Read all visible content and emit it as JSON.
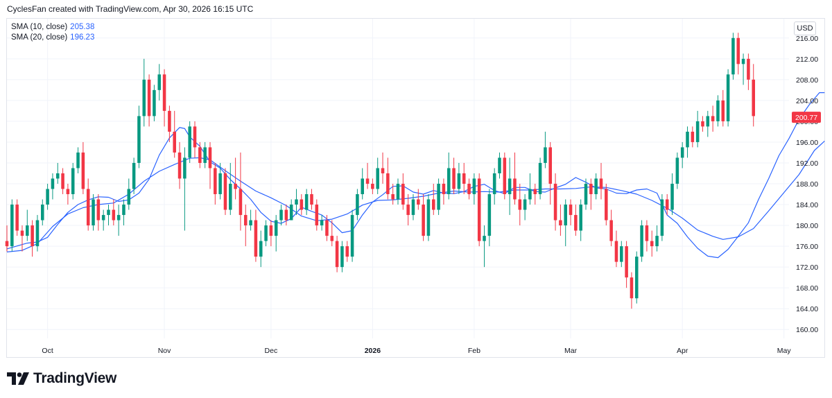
{
  "caption": "CyclesFan created with TradingView.com, Apr 30, 2026 16:15 UTC",
  "legend": [
    {
      "label": "SMA (10, close)",
      "value": "205.38",
      "color": "#2962ff"
    },
    {
      "label": "SMA (20, close)",
      "value": "196.23",
      "color": "#2962ff"
    }
  ],
  "currency_button": "USD",
  "brand": "TradingView",
  "colors": {
    "up": "#089981",
    "down": "#f23645",
    "sma": "#2962ff",
    "grid": "#f0f3fa",
    "axis_text": "#131722"
  },
  "chart_data": {
    "type": "candlestick",
    "last_price": "200.77",
    "y_ticks": [
      160,
      164,
      168,
      172,
      176,
      180,
      184,
      188,
      192,
      196,
      200,
      204,
      208,
      212,
      216
    ],
    "y_tick_labels": [
      "160.00",
      "164.00",
      "168.00",
      "172.00",
      "176.00",
      "180.00",
      "184.00",
      "188.00",
      "192.00",
      "196.00",
      "200.00",
      "204.00",
      "208.00",
      "212.00",
      "216.00"
    ],
    "ylim": [
      158.3,
      219.7
    ],
    "x_range": [
      0,
      154
    ],
    "x_ticks": [
      {
        "label": "Oct",
        "index": 8
      },
      {
        "label": "Nov",
        "index": 31
      },
      {
        "label": "Dec",
        "index": 52
      },
      {
        "label": "2026",
        "index": 72
      },
      {
        "label": "Feb",
        "index": 92
      },
      {
        "label": "Mar",
        "index": 111
      },
      {
        "label": "Apr",
        "index": 133
      },
      {
        "label": "May",
        "index": 153
      }
    ],
    "candles": [
      [
        177,
        180,
        175,
        176
      ],
      [
        176,
        185,
        175,
        184
      ],
      [
        184,
        185,
        178,
        179
      ],
      [
        179,
        180,
        175,
        178
      ],
      [
        178,
        183,
        177,
        180
      ],
      [
        180,
        181,
        174,
        176
      ],
      [
        176,
        182,
        175,
        181
      ],
      [
        181,
        185,
        180,
        184
      ],
      [
        184,
        188,
        183,
        187
      ],
      [
        187,
        190,
        185,
        189
      ],
      [
        189,
        192,
        188,
        190
      ],
      [
        190,
        191,
        186,
        187
      ],
      [
        187,
        188,
        184,
        186
      ],
      [
        186,
        192,
        185,
        191
      ],
      [
        191,
        195,
        190,
        194
      ],
      [
        194,
        196,
        186,
        187
      ],
      [
        187,
        189,
        179,
        180
      ],
      [
        180,
        186,
        179,
        185
      ],
      [
        185,
        186,
        179,
        181
      ],
      [
        181,
        183,
        179,
        182
      ],
      [
        182,
        184,
        180,
        183
      ],
      [
        183,
        185,
        180,
        181
      ],
      [
        181,
        184,
        178,
        182
      ],
      [
        182,
        185,
        180,
        184
      ],
      [
        184,
        189,
        183,
        187
      ],
      [
        187,
        193,
        186,
        192
      ],
      [
        192,
        203,
        191,
        201
      ],
      [
        201,
        212,
        199,
        208
      ],
      [
        208,
        209,
        199,
        201
      ],
      [
        201,
        207,
        200,
        206
      ],
      [
        206,
        211,
        204,
        209
      ],
      [
        209,
        210,
        199,
        202
      ],
      [
        202,
        203,
        196,
        198
      ],
      [
        198,
        202,
        193,
        194
      ],
      [
        194,
        196,
        187,
        189
      ],
      [
        189,
        195,
        179,
        193
      ],
      [
        193,
        200,
        192,
        199
      ],
      [
        199,
        200,
        193,
        195
      ],
      [
        195,
        196,
        191,
        192
      ],
      [
        192,
        196,
        191,
        195
      ],
      [
        195,
        196,
        187,
        191
      ],
      [
        191,
        192,
        184,
        186
      ],
      [
        186,
        192,
        185,
        190
      ],
      [
        190,
        191,
        182,
        183
      ],
      [
        183,
        192,
        182,
        188
      ],
      [
        188,
        193,
        185,
        187
      ],
      [
        187,
        194,
        179,
        182
      ],
      [
        182,
        184,
        176,
        180
      ],
      [
        180,
        183,
        179,
        181
      ],
      [
        181,
        183,
        173,
        174
      ],
      [
        174,
        179,
        172,
        177
      ],
      [
        177,
        181,
        176,
        180
      ],
      [
        180,
        181,
        176,
        178
      ],
      [
        178,
        182,
        175,
        181
      ],
      [
        181,
        184,
        180,
        183
      ],
      [
        183,
        184,
        180,
        181
      ],
      [
        181,
        185,
        181,
        184
      ],
      [
        184,
        187,
        182,
        185
      ],
      [
        185,
        186,
        182,
        183
      ],
      [
        183,
        187,
        182,
        186
      ],
      [
        186,
        187,
        183,
        184
      ],
      [
        184,
        185,
        179,
        180
      ],
      [
        180,
        182,
        179,
        181
      ],
      [
        181,
        182,
        177,
        178
      ],
      [
        178,
        181,
        176,
        177
      ],
      [
        177,
        178,
        171,
        172
      ],
      [
        172,
        177,
        171,
        176
      ],
      [
        176,
        177,
        173,
        174
      ],
      [
        174,
        183,
        173,
        182
      ],
      [
        182,
        187,
        181,
        186
      ],
      [
        186,
        191,
        185,
        189
      ],
      [
        189,
        192,
        187,
        188
      ],
      [
        188,
        189,
        186,
        187
      ],
      [
        187,
        193,
        186,
        191
      ],
      [
        191,
        194,
        188,
        190
      ],
      [
        190,
        193,
        185,
        186
      ],
      [
        186,
        188,
        184,
        185
      ],
      [
        185,
        189,
        184,
        188
      ],
      [
        188,
        190,
        183,
        184
      ],
      [
        184,
        186,
        180,
        182
      ],
      [
        182,
        186,
        181,
        185
      ],
      [
        185,
        187,
        183,
        184
      ],
      [
        184,
        186,
        177,
        178
      ],
      [
        178,
        186,
        177,
        185
      ],
      [
        185,
        188,
        182,
        183
      ],
      [
        183,
        189,
        182,
        188
      ],
      [
        188,
        189,
        184,
        186
      ],
      [
        186,
        194,
        185,
        191
      ],
      [
        191,
        193,
        186,
        187
      ],
      [
        187,
        192,
        186,
        190
      ],
      [
        190,
        192,
        186,
        188
      ],
      [
        188,
        189,
        185,
        186
      ],
      [
        186,
        190,
        184,
        189
      ],
      [
        189,
        190,
        176,
        177
      ],
      [
        177,
        180,
        172,
        178
      ],
      [
        178,
        187,
        176,
        186
      ],
      [
        186,
        191,
        184,
        190
      ],
      [
        190,
        194,
        189,
        193
      ],
      [
        193,
        194,
        185,
        186
      ],
      [
        186,
        193,
        182,
        189
      ],
      [
        189,
        194,
        184,
        185
      ],
      [
        185,
        188,
        180,
        183
      ],
      [
        183,
        186,
        181,
        185
      ],
      [
        185,
        190,
        184,
        187
      ],
      [
        187,
        188,
        184,
        186
      ],
      [
        186,
        193,
        185,
        192
      ],
      [
        192,
        198,
        191,
        195
      ],
      [
        195,
        196,
        184,
        188
      ],
      [
        188,
        190,
        179,
        181
      ],
      [
        181,
        184,
        178,
        180
      ],
      [
        180,
        185,
        176,
        184
      ],
      [
        184,
        185,
        180,
        182
      ],
      [
        182,
        184,
        178,
        179
      ],
      [
        179,
        185,
        177,
        184
      ],
      [
        184,
        189,
        183,
        188
      ],
      [
        188,
        189,
        183,
        186
      ],
      [
        186,
        190,
        185,
        189
      ],
      [
        189,
        192,
        185,
        187
      ],
      [
        187,
        188,
        180,
        181
      ],
      [
        181,
        183,
        176,
        177
      ],
      [
        177,
        179,
        172,
        173
      ],
      [
        173,
        177,
        172,
        176
      ],
      [
        176,
        177,
        168,
        170
      ],
      [
        170,
        171,
        164,
        166
      ],
      [
        166,
        175,
        165,
        174
      ],
      [
        174,
        181,
        173,
        180
      ],
      [
        180,
        181,
        175,
        177
      ],
      [
        177,
        179,
        174,
        176
      ],
      [
        176,
        180,
        175,
        178
      ],
      [
        178,
        186,
        177,
        185
      ],
      [
        185,
        186,
        182,
        183
      ],
      [
        183,
        190,
        182,
        188
      ],
      [
        188,
        194,
        187,
        193
      ],
      [
        193,
        196,
        191,
        195
      ],
      [
        195,
        199,
        193,
        198
      ],
      [
        198,
        199,
        195,
        196
      ],
      [
        196,
        202,
        195,
        200
      ],
      [
        200,
        201,
        198,
        199
      ],
      [
        199,
        202,
        197,
        201
      ],
      [
        201,
        203,
        198,
        200
      ],
      [
        200,
        205,
        199,
        204
      ],
      [
        204,
        206,
        199,
        200
      ],
      [
        200,
        210,
        199,
        209
      ],
      [
        209,
        217,
        208,
        216
      ],
      [
        216,
        217,
        209,
        211
      ],
      [
        211,
        213,
        207,
        212
      ],
      [
        212,
        213,
        206,
        208
      ],
      [
        208,
        211,
        199,
        201
      ]
    ],
    "sma10": [
      [
        0,
        175.5
      ],
      [
        4,
        176.6
      ],
      [
        6,
        176.8
      ],
      [
        8,
        177.7
      ],
      [
        10,
        180.2
      ],
      [
        12,
        182.5
      ],
      [
        14,
        184
      ],
      [
        16,
        184.9
      ],
      [
        18,
        185.5
      ],
      [
        20,
        185.4
      ],
      [
        22,
        184.6
      ],
      [
        24,
        184.9
      ],
      [
        26,
        186.2
      ],
      [
        28,
        188.9
      ],
      [
        30,
        193.5
      ],
      [
        32,
        196.8
      ],
      [
        34,
        198.8
      ],
      [
        35,
        198.6
      ],
      [
        36,
        197
      ],
      [
        38,
        195.2
      ],
      [
        40,
        192.2
      ],
      [
        42,
        191
      ],
      [
        44,
        188.8
      ],
      [
        46,
        187
      ],
      [
        48,
        185
      ],
      [
        50,
        182.5
      ],
      [
        52,
        180.8
      ],
      [
        54,
        180.4
      ],
      [
        56,
        181.3
      ],
      [
        58,
        183.5
      ],
      [
        60,
        182.7
      ],
      [
        62,
        182
      ],
      [
        64,
        180.5
      ],
      [
        66,
        178.6
      ],
      [
        68,
        179
      ],
      [
        70,
        182
      ],
      [
        72,
        184.5
      ],
      [
        74,
        185.9
      ],
      [
        76,
        187.5
      ],
      [
        78,
        187.6
      ],
      [
        80,
        186.4
      ],
      [
        82,
        186
      ],
      [
        84,
        186.7
      ],
      [
        86,
        186.2
      ],
      [
        88,
        186.1
      ],
      [
        90,
        186.5
      ],
      [
        92,
        187.5
      ],
      [
        94,
        187.9
      ],
      [
        96,
        186.7
      ],
      [
        98,
        186.1
      ],
      [
        100,
        187.3
      ],
      [
        102,
        187.3
      ],
      [
        104,
        186.5
      ],
      [
        106,
        186.4
      ],
      [
        108,
        187.2
      ],
      [
        110,
        187.9
      ],
      [
        112,
        189.2
      ],
      [
        114,
        188.3
      ],
      [
        116,
        187.2
      ],
      [
        118,
        187
      ],
      [
        120,
        186.2
      ],
      [
        122,
        186.1
      ],
      [
        124,
        186.8
      ],
      [
        126,
        187
      ],
      [
        128,
        186.2
      ],
      [
        130,
        182
      ],
      [
        132,
        180.4
      ],
      [
        134,
        177.8
      ],
      [
        136,
        175.6
      ],
      [
        138,
        174.1
      ],
      [
        140,
        173.8
      ],
      [
        142,
        175.4
      ],
      [
        144,
        177.9
      ],
      [
        146,
        180.5
      ],
      [
        148,
        185
      ],
      [
        150,
        189
      ],
      [
        152,
        193.4
      ],
      [
        154,
        196.7
      ],
      [
        156,
        200.4
      ],
      [
        158,
        203.2
      ],
      [
        160,
        205.5
      ],
      [
        161,
        205.5
      ]
    ],
    "sma20": [
      [
        0,
        174.9
      ],
      [
        3,
        175.2
      ],
      [
        6,
        176.5
      ],
      [
        9,
        179.8
      ],
      [
        12,
        182.2
      ],
      [
        15,
        183.4
      ],
      [
        18,
        184
      ],
      [
        21,
        184.3
      ],
      [
        24,
        186
      ],
      [
        27,
        188.5
      ],
      [
        30,
        190.4
      ],
      [
        33,
        191.7
      ],
      [
        36,
        192.9
      ],
      [
        38,
        193
      ],
      [
        40,
        192.6
      ],
      [
        43,
        190.5
      ],
      [
        46,
        188.5
      ],
      [
        49,
        186.6
      ],
      [
        52,
        185.3
      ],
      [
        55,
        183.8
      ],
      [
        58,
        181.8
      ],
      [
        61,
        180.9
      ],
      [
        64,
        181.2
      ],
      [
        67,
        182.2
      ],
      [
        70,
        183.9
      ],
      [
        73,
        184.8
      ],
      [
        76,
        184.9
      ],
      [
        79,
        185.2
      ],
      [
        82,
        185.6
      ],
      [
        85,
        186.2
      ],
      [
        88,
        186.6
      ],
      [
        91,
        186.4
      ],
      [
        94,
        186.5
      ],
      [
        97,
        186.4
      ],
      [
        100,
        186.8
      ],
      [
        103,
        186.8
      ],
      [
        106,
        187
      ],
      [
        109,
        187
      ],
      [
        112,
        187.1
      ],
      [
        115,
        187.4
      ],
      [
        118,
        187.3
      ],
      [
        121,
        186.7
      ],
      [
        124,
        186
      ],
      [
        127,
        184.8
      ],
      [
        130,
        183.3
      ],
      [
        133,
        181.4
      ],
      [
        136,
        179.1
      ],
      [
        139,
        177.9
      ],
      [
        141,
        177.3
      ],
      [
        144,
        177.8
      ],
      [
        147,
        179.4
      ],
      [
        150,
        182.8
      ],
      [
        153,
        186.3
      ],
      [
        156,
        189.8
      ],
      [
        159,
        194.4
      ],
      [
        161,
        196.2
      ]
    ]
  }
}
